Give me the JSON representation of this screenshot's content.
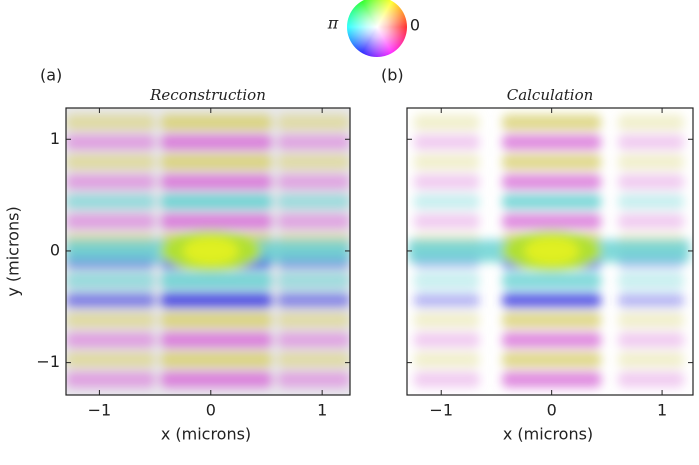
{
  "phase_legend": {
    "left_label": "π",
    "right_label": "0"
  },
  "chart_data": [
    {
      "type": "image",
      "panel_label": "(a)",
      "title": "Reconstruction",
      "x_label": "x (microns)",
      "y_label": "y (microns)",
      "xlim": [
        -1.3,
        1.25
      ],
      "ylim": [
        -1.29,
        1.28
      ],
      "xticks": [
        {
          "value": -1,
          "label": "−1"
        },
        0,
        1
      ],
      "yticks": [
        {
          "value": -1,
          "label": "−1"
        },
        0,
        1
      ],
      "show_ytick_labels": true
    },
    {
      "type": "image",
      "panel_label": "(b)",
      "title": "Calculation",
      "x_label": "x (microns)",
      "xlim": [
        -1.31,
        1.28
      ],
      "ylim": [
        -1.29,
        1.28
      ],
      "xticks": [
        {
          "value": -1,
          "label": "−1"
        },
        0,
        1
      ],
      "yticks": [
        {
          "value": -1,
          "label": "−1"
        },
        0,
        1
      ],
      "show_ytick_labels": false
    }
  ]
}
